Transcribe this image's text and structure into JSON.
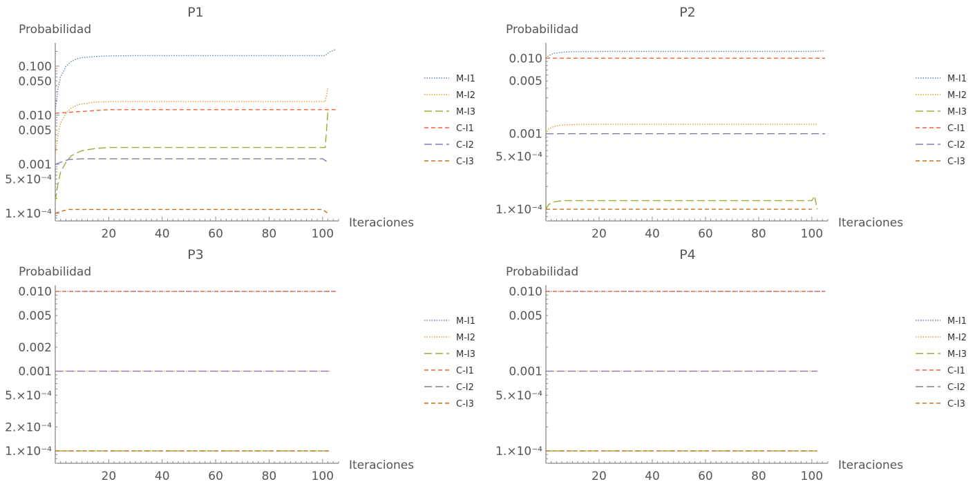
{
  "chart_data": [
    {
      "type": "line",
      "title": "P1",
      "ylabel": "Probabilidad",
      "xlabel": "Iteraciones",
      "yscale": "log",
      "ylim": [
        7e-05,
        0.3
      ],
      "xlim": [
        0,
        106
      ],
      "xticks": [
        20,
        40,
        60,
        80,
        100
      ],
      "ytick_labels": [
        {
          "value": 0.1,
          "label": "0.100"
        },
        {
          "value": 0.05,
          "label": "0.050"
        },
        {
          "value": 0.01,
          "label": "0.010"
        },
        {
          "value": 0.005,
          "label": "0.005"
        },
        {
          "value": 0.001,
          "label": "0.001"
        },
        {
          "value": 0.0005,
          "label": "5.×10⁻⁴"
        },
        {
          "value": 0.0001,
          "label": "1.×10⁻⁴"
        }
      ],
      "series": [
        {
          "name": "M-I1",
          "x": [
            0,
            1,
            2,
            4,
            6,
            8,
            10,
            15,
            20,
            30,
            40,
            60,
            80,
            100,
            101,
            103,
            105
          ],
          "values": [
            0.012,
            0.035,
            0.06,
            0.1,
            0.125,
            0.14,
            0.15,
            0.158,
            0.162,
            0.165,
            0.165,
            0.165,
            0.165,
            0.165,
            0.165,
            0.2,
            0.22
          ]
        },
        {
          "name": "M-I2",
          "x": [
            0,
            1,
            2,
            4,
            6,
            8,
            10,
            15,
            20,
            30,
            40,
            60,
            80,
            100,
            101,
            102
          ],
          "values": [
            0.0015,
            0.004,
            0.007,
            0.011,
            0.014,
            0.016,
            0.017,
            0.0185,
            0.019,
            0.019,
            0.019,
            0.019,
            0.019,
            0.019,
            0.019,
            0.035
          ]
        },
        {
          "name": "M-I3",
          "x": [
            0,
            1,
            2,
            4,
            6,
            8,
            10,
            15,
            20,
            30,
            40,
            60,
            80,
            100,
            101,
            102
          ],
          "values": [
            0.00018,
            0.0004,
            0.0007,
            0.0011,
            0.0015,
            0.0017,
            0.0019,
            0.0021,
            0.0022,
            0.0022,
            0.0022,
            0.0022,
            0.0022,
            0.0022,
            0.0022,
            0.012
          ]
        },
        {
          "name": "C-I1",
          "x": [
            0,
            20,
            40,
            60,
            80,
            100,
            105
          ],
          "values": [
            0.011,
            0.013,
            0.013,
            0.013,
            0.013,
            0.013,
            0.013
          ]
        },
        {
          "name": "C-I2",
          "x": [
            0,
            2,
            5,
            10,
            20,
            40,
            60,
            80,
            100,
            102
          ],
          "values": [
            0.001,
            0.0011,
            0.00125,
            0.0013,
            0.0013,
            0.0013,
            0.0013,
            0.0013,
            0.0013,
            0.0011
          ]
        },
        {
          "name": "C-I3",
          "x": [
            0,
            2,
            5,
            20,
            40,
            60,
            80,
            100,
            102
          ],
          "values": [
            0.0001,
            0.00011,
            0.00012,
            0.00012,
            0.00012,
            0.00012,
            0.00012,
            0.00012,
            0.0001
          ]
        }
      ]
    },
    {
      "type": "line",
      "title": "P2",
      "ylabel": "Probabilidad",
      "xlabel": "Iteraciones",
      "yscale": "log",
      "ylim": [
        7e-05,
        0.016
      ],
      "xlim": [
        0,
        106
      ],
      "xticks": [
        20,
        40,
        60,
        80,
        100
      ],
      "ytick_labels": [
        {
          "value": 0.01,
          "label": "0.010"
        },
        {
          "value": 0.005,
          "label": "0.005"
        },
        {
          "value": 0.001,
          "label": "0.001"
        },
        {
          "value": 0.0005,
          "label": "5.×10⁻⁴"
        },
        {
          "value": 0.0001,
          "label": "1.×10⁻⁴"
        }
      ],
      "series": [
        {
          "name": "M-I1",
          "x": [
            0,
            1,
            3,
            6,
            10,
            20,
            40,
            60,
            80,
            100,
            105
          ],
          "values": [
            0.01,
            0.0108,
            0.0116,
            0.012,
            0.0122,
            0.0123,
            0.0123,
            0.0123,
            0.0123,
            0.0123,
            0.0125
          ]
        },
        {
          "name": "M-I2",
          "x": [
            0,
            1,
            3,
            6,
            10,
            20,
            40,
            60,
            80,
            100,
            102
          ],
          "values": [
            0.001,
            0.00115,
            0.00125,
            0.0013,
            0.00132,
            0.00133,
            0.00133,
            0.00133,
            0.00133,
            0.00133,
            0.00133
          ]
        },
        {
          "name": "M-I3",
          "x": [
            0,
            1,
            3,
            6,
            10,
            20,
            40,
            60,
            80,
            100,
            101,
            102
          ],
          "values": [
            0.0001,
            0.000115,
            0.000125,
            0.00013,
            0.00013,
            0.00013,
            0.00013,
            0.00013,
            0.00013,
            0.00013,
            0.00015,
            0.0001
          ]
        },
        {
          "name": "C-I1",
          "x": [
            0,
            40,
            80,
            105
          ],
          "values": [
            0.01,
            0.01,
            0.01,
            0.01
          ]
        },
        {
          "name": "C-I2",
          "x": [
            0,
            40,
            80,
            105
          ],
          "values": [
            0.001,
            0.001,
            0.001,
            0.001
          ]
        },
        {
          "name": "C-I3",
          "x": [
            0,
            40,
            80,
            100
          ],
          "values": [
            0.0001,
            0.0001,
            0.0001,
            0.0001
          ]
        }
      ]
    },
    {
      "type": "line",
      "title": "P3",
      "ylabel": "Probabilidad",
      "xlabel": "Iteraciones",
      "yscale": "log",
      "ylim": [
        7e-05,
        0.012
      ],
      "xlim": [
        0,
        106
      ],
      "xticks": [
        20,
        40,
        60,
        80,
        100
      ],
      "ytick_labels": [
        {
          "value": 0.01,
          "label": "0.010"
        },
        {
          "value": 0.005,
          "label": "0.005"
        },
        {
          "value": 0.002,
          "label": "0.002"
        },
        {
          "value": 0.001,
          "label": "0.001"
        },
        {
          "value": 0.0005,
          "label": "5.×10⁻⁴"
        },
        {
          "value": 0.0002,
          "label": "2.×10⁻⁴"
        },
        {
          "value": 0.0001,
          "label": "1.×10⁻⁴"
        }
      ],
      "series": [
        {
          "name": "M-I1",
          "x": [
            0,
            105
          ],
          "values": [
            0.01,
            0.01
          ]
        },
        {
          "name": "M-I2",
          "x": [
            0,
            103
          ],
          "values": [
            0.001,
            0.001
          ]
        },
        {
          "name": "M-I3",
          "x": [
            0,
            103
          ],
          "values": [
            0.0001,
            0.0001
          ]
        },
        {
          "name": "C-I1",
          "x": [
            0,
            105
          ],
          "values": [
            0.01,
            0.01
          ]
        },
        {
          "name": "C-I2",
          "x": [
            0,
            103
          ],
          "values": [
            0.001,
            0.001
          ]
        },
        {
          "name": "C-I3",
          "x": [
            0,
            103
          ],
          "values": [
            0.0001,
            0.0001
          ]
        }
      ]
    },
    {
      "type": "line",
      "title": "P4",
      "ylabel": "Probabilidad",
      "xlabel": "Iteraciones",
      "yscale": "log",
      "ylim": [
        7e-05,
        0.012
      ],
      "xlim": [
        0,
        106
      ],
      "xticks": [
        20,
        40,
        60,
        80,
        100
      ],
      "ytick_labels": [
        {
          "value": 0.01,
          "label": "0.010"
        },
        {
          "value": 0.005,
          "label": "0.005"
        },
        {
          "value": 0.001,
          "label": "0.001"
        },
        {
          "value": 0.0005,
          "label": "5.×10⁻⁴"
        },
        {
          "value": 0.0001,
          "label": "1.×10⁻⁴"
        }
      ],
      "series": [
        {
          "name": "M-I1",
          "x": [
            0,
            105
          ],
          "values": [
            0.01,
            0.01
          ]
        },
        {
          "name": "M-I2",
          "x": [
            0,
            102
          ],
          "values": [
            0.001,
            0.001
          ]
        },
        {
          "name": "M-I3",
          "x": [
            0,
            102
          ],
          "values": [
            0.0001,
            0.0001
          ]
        },
        {
          "name": "C-I1",
          "x": [
            0,
            105
          ],
          "values": [
            0.01,
            0.01
          ]
        },
        {
          "name": "C-I2",
          "x": [
            0,
            102
          ],
          "values": [
            0.001,
            0.001
          ]
        },
        {
          "name": "C-I3",
          "x": [
            0,
            102
          ],
          "values": [
            0.0001,
            0.0001
          ]
        }
      ]
    }
  ],
  "legend": {
    "placement": "right",
    "entries": [
      {
        "name": "M-I1",
        "color": "#5e81b5",
        "style": "dotted"
      },
      {
        "name": "M-I2",
        "color": "#e19c24",
        "style": "dotted"
      },
      {
        "name": "M-I3",
        "color": "#8fb032",
        "style": "long-dashed"
      },
      {
        "name": "C-I1",
        "color": "#eb6235",
        "style": "dashed"
      },
      {
        "name": "C-I2",
        "color": "#8778b3",
        "style": "long-dashed"
      },
      {
        "name": "C-I3",
        "color": "#c56e1a",
        "style": "dashed"
      }
    ]
  }
}
